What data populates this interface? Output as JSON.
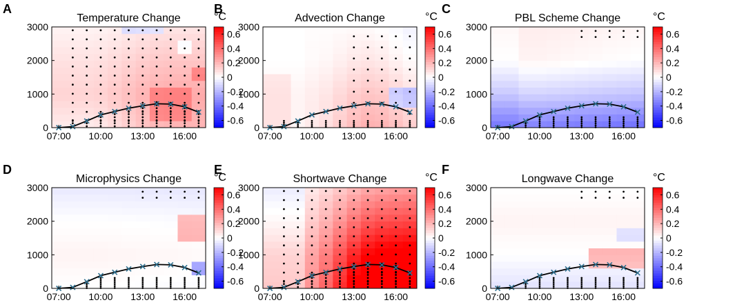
{
  "chart_data": {
    "type": "heatmap",
    "xticks": [
      "07:00",
      "10:00",
      "13:00",
      "16:00"
    ],
    "x_hours": [
      7,
      8,
      9,
      10,
      11,
      12,
      13,
      14,
      15,
      16,
      17
    ],
    "ylim": [
      0,
      3000
    ],
    "yticks": [
      "0",
      "1000",
      "2000",
      "3000"
    ],
    "colorbar": {
      "min": -0.7,
      "max": 0.7,
      "unit": "°C",
      "ticks": [
        "0.6",
        "0.4",
        "0.2",
        "0",
        "-0.2",
        "-0.4",
        "-0.6"
      ],
      "tick_values": [
        0.6,
        0.4,
        0.2,
        0,
        -0.2,
        -0.4,
        -0.6
      ],
      "colors": {
        "negative": "#0000ff",
        "neutral": "#ffffff",
        "positive": "#ff0000"
      }
    },
    "pbl_height": {
      "x": [
        7,
        8,
        9,
        10,
        11,
        12,
        13,
        14,
        15,
        16,
        17
      ],
      "y": [
        0,
        30,
        200,
        380,
        480,
        580,
        650,
        710,
        700,
        620,
        460
      ]
    },
    "panels": [
      {
        "letter": "A",
        "title": "Temperature Change",
        "profile": [
          0.05,
          0.12,
          0.08,
          0.03
        ],
        "trend": 0.0,
        "deep": 0.15,
        "grid_mode": "dense",
        "bias": [
          {
            "hours": [
              13.5,
              16.5
            ],
            "z": [
              200,
              1100
            ],
            "dv": 0.12
          },
          {
            "hours": [
              11.5,
              14.5
            ],
            "z": [
              2800,
              3000
            ],
            "dv": -0.15
          },
          {
            "hours": [
              15.5,
              16.5
            ],
            "z": [
              2200,
              2600
            ],
            "dv": -0.12
          },
          {
            "hours": [
              16.5,
              17.5
            ],
            "z": [
              1400,
              1700
            ],
            "dv": 0.15
          }
        ]
      },
      {
        "letter": "B",
        "title": "Advection Change",
        "profile": [
          0.03,
          0.03,
          0.0,
          0.0
        ],
        "trend": -0.5,
        "deep": 0.35,
        "grid_mode": "sparse",
        "bias": [
          {
            "hours": [
              15.5,
              17.5
            ],
            "z": [
              600,
              1100
            ],
            "dv": -0.25
          },
          {
            "hours": [
              7,
              8.5
            ],
            "z": [
              0,
              1500
            ],
            "dv": 0.05
          }
        ]
      },
      {
        "letter": "C",
        "title": "PBL Scheme Change",
        "profile": [
          -0.35,
          -0.12,
          0.03,
          0.05
        ],
        "trend": -0.1,
        "deep": 0.0,
        "grid_mode": "lowlevel",
        "bias": [
          {
            "hours": [
              7,
              8.5
            ],
            "z": [
              0,
              3000
            ],
            "dv": -0.03
          }
        ]
      },
      {
        "letter": "D",
        "title": "Microphysics Change",
        "profile": [
          0.0,
          0.03,
          0.0,
          -0.06
        ],
        "trend": -0.03,
        "deep": 0.0,
        "grid_mode": "lowlevel",
        "bias": [
          {
            "hours": [
              15.5,
              17.5
            ],
            "z": [
              1500,
              2100
            ],
            "dv": 0.2
          },
          {
            "hours": [
              16.5,
              17.5
            ],
            "z": [
              400,
              800
            ],
            "dv": -0.25
          }
        ]
      },
      {
        "letter": "E",
        "title": "Shortwave Change",
        "profile": [
          0.25,
          0.22,
          0.12,
          0.05
        ],
        "trend": 0.25,
        "deep": 0.6,
        "grid_mode": "dense",
        "bias": [
          {
            "hours": [
              7,
              9.5
            ],
            "z": [
              0,
              3000
            ],
            "dv": -0.1
          }
        ]
      },
      {
        "letter": "F",
        "title": "Longwave Change",
        "profile": [
          -0.08,
          0.0,
          0.03,
          0.0
        ],
        "trend": 0.0,
        "deep": 0.0,
        "grid_mode": "lowlevel",
        "bias": [
          {
            "hours": [
              13.5,
              17.5
            ],
            "z": [
              600,
              1200
            ],
            "dv": 0.2
          },
          {
            "hours": [
              15.5,
              17.5
            ],
            "z": [
              1400,
              1800
            ],
            "dv": -0.1
          }
        ]
      }
    ]
  }
}
